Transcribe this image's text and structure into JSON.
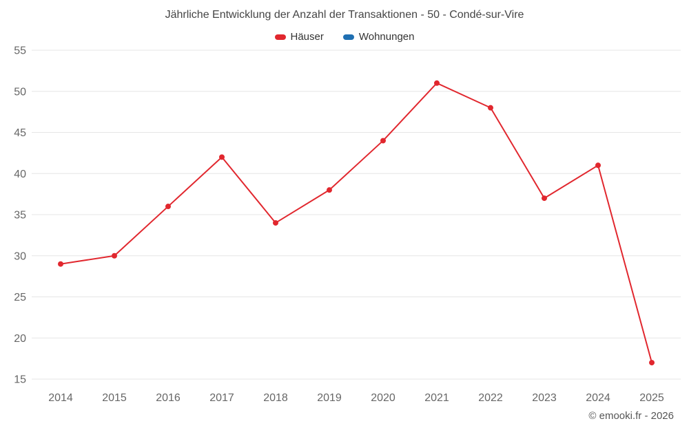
{
  "chart_data": {
    "type": "line",
    "title": "Jährliche Entwicklung der Anzahl der Transaktionen - 50 - Condé-sur-Vire",
    "x": [
      "2014",
      "2015",
      "2016",
      "2017",
      "2018",
      "2019",
      "2020",
      "2021",
      "2022",
      "2023",
      "2024",
      "2025"
    ],
    "series": [
      {
        "name": "Häuser",
        "color": "#e1272e",
        "values": [
          29,
          30,
          36,
          42,
          34,
          38,
          44,
          51,
          48,
          37,
          41,
          17
        ]
      },
      {
        "name": "Wohnungen",
        "color": "#1f6fb2",
        "values": []
      }
    ],
    "ylim": [
      15,
      55
    ],
    "yticks": [
      15,
      20,
      25,
      30,
      35,
      40,
      45,
      50,
      55
    ],
    "grid": "horizontal",
    "legend_position": "top",
    "xlabel": "",
    "ylabel": ""
  },
  "colors": {
    "gridline": "#e6e6e6",
    "axis_label": "#666666",
    "title_text": "#454545"
  },
  "footer": "© emooki.fr - 2026"
}
